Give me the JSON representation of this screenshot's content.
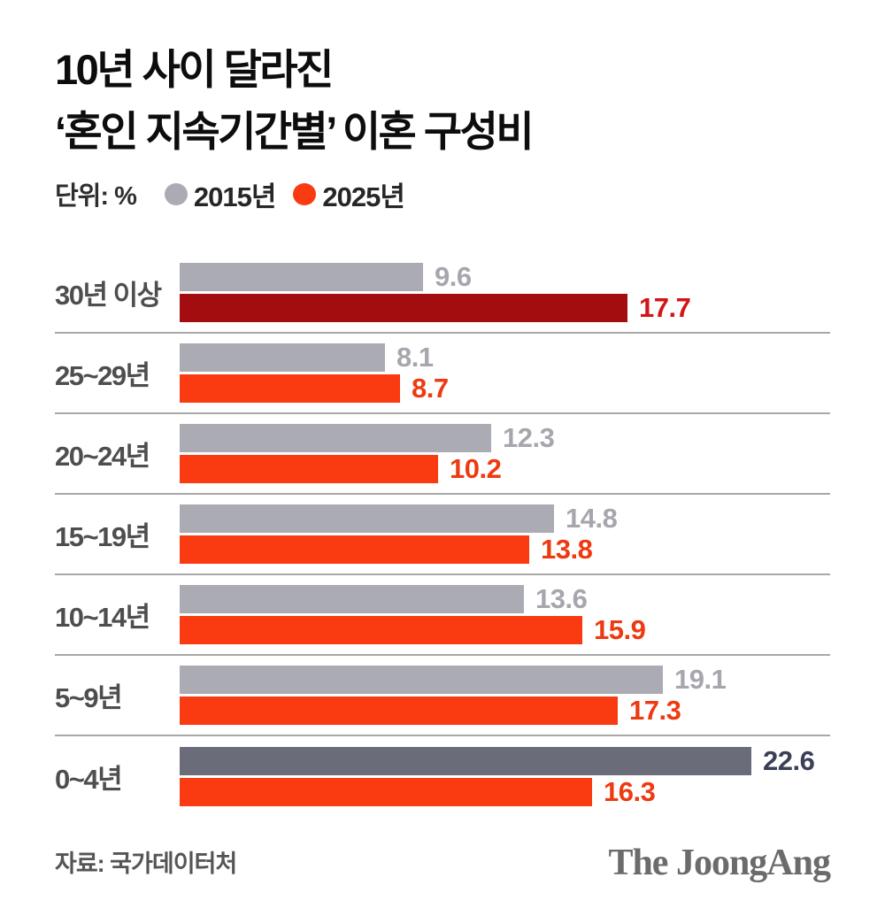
{
  "title": {
    "line1": "10년 사이 달라진",
    "line2": "‘혼인 지속기간별’ 이혼 구성비"
  },
  "unit_label": "단위: %",
  "legend": [
    {
      "label": "2015년",
      "color": "#ababb3"
    },
    {
      "label": "2025년",
      "color": "#fa3a10"
    }
  ],
  "source": "자료: 국가데이터처",
  "logo": "The JoongAng",
  "colors": {
    "bar_2015": "#ababb3",
    "bar_2025": "#fa3a10",
    "bar_2015_emphasis": "#6a6c7a",
    "bar_2025_emphasis": "#a30d10",
    "value_2015": "#a6a6ae",
    "value_2025": "#ee3a10",
    "value_2015_emphasis": "#3a4057",
    "value_2025_emphasis": "#d31418",
    "category_label": "#4e4e4e",
    "separator": "#a8a8a8"
  },
  "chart_data": {
    "type": "bar",
    "orientation": "horizontal",
    "title": "10년 사이 달라진 ‘혼인 지속기간별’ 이혼 구성비",
    "unit": "%",
    "categories": [
      "30년 이상",
      "25~29년",
      "20~24년",
      "15~19년",
      "10~14년",
      "5~9년",
      "0~4년"
    ],
    "series": [
      {
        "name": "2015년",
        "values": [
          9.6,
          8.1,
          12.3,
          14.8,
          13.6,
          19.1,
          22.6
        ]
      },
      {
        "name": "2025년",
        "values": [
          17.7,
          8.7,
          10.2,
          13.8,
          15.9,
          17.3,
          16.3
        ]
      }
    ],
    "value_labels": [
      [
        "9.6",
        "8.1",
        "12.3",
        "14.8",
        "13.6",
        "19.1",
        "22.6"
      ],
      [
        "17.7",
        "8.7",
        "10.2",
        "13.8",
        "15.9",
        "17.3",
        "16.3"
      ]
    ],
    "emphasis_rows_2015": [
      6
    ],
    "emphasis_rows_2025": [
      0
    ],
    "legend_position": "top",
    "grid": false,
    "xlim": [
      0,
      24
    ]
  }
}
